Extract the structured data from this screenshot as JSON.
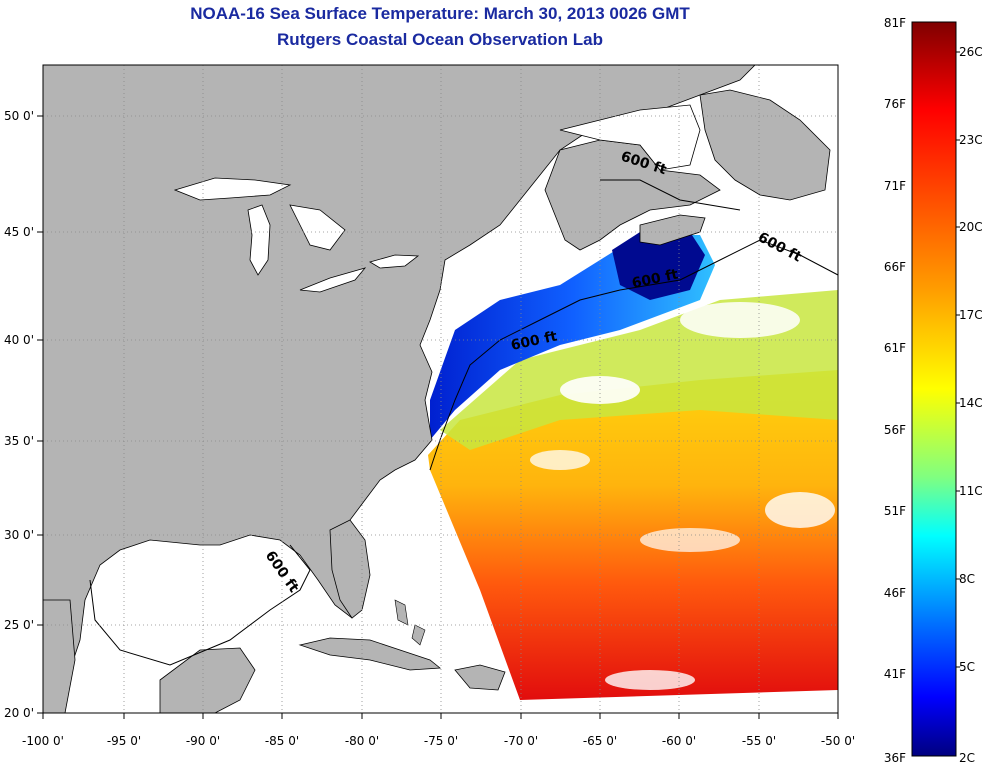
{
  "title": "NOAA-16 Sea Surface Temperature:  March 30, 2013 0026 GMT",
  "subtitle": "Rutgers Coastal Ocean Observation Lab",
  "isobath_label": "600 ft",
  "longitude_labels": [
    "-100 0'",
    "-95 0'",
    "-90 0'",
    "-85 0'",
    "-80 0'",
    "-75 0'",
    "-70 0'",
    "-65 0'",
    "-60 0'",
    "-55 0'",
    "-50 0'"
  ],
  "latitude_labels": [
    "50 0'",
    "45 0'",
    "40 0'",
    "35 0'",
    "30 0'",
    "25 0'",
    "20 0'"
  ],
  "colorbar": {
    "fahrenheit_labels": [
      "81F",
      "76F",
      "71F",
      "66F",
      "61F",
      "56F",
      "51F",
      "46F",
      "41F",
      "36F"
    ],
    "celsius_labels": [
      "26C",
      "23C",
      "20C",
      "17C",
      "14C",
      "11C",
      "8C",
      "5C",
      "2C"
    ],
    "colors": [
      "#7f0000",
      "#ff0000",
      "#ff8000",
      "#ffff00",
      "#80ff80",
      "#00ffff",
      "#0080ff",
      "#0000ff",
      "#00007f"
    ]
  },
  "colors": {
    "land": "#b4b4b4",
    "water": "#ffffff",
    "title": "#1a2aa0"
  }
}
